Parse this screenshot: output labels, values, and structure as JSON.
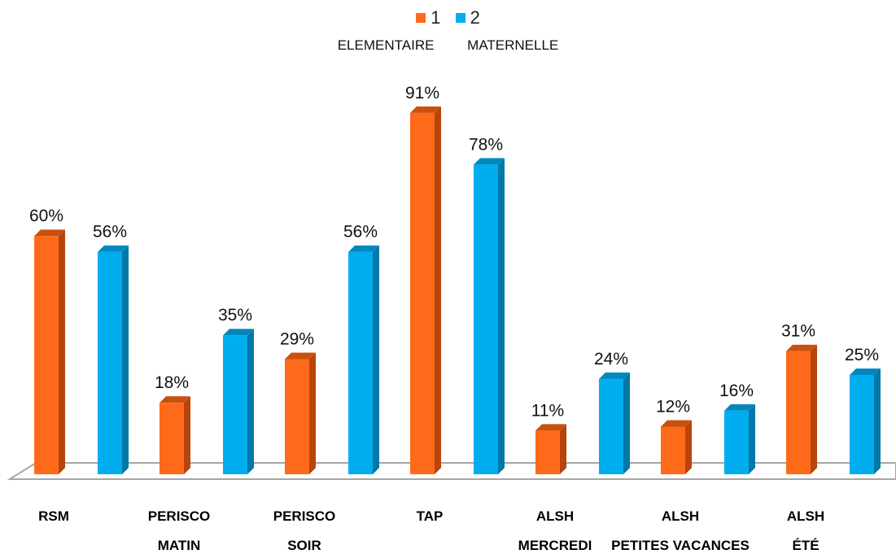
{
  "legend": {
    "items": [
      {
        "label": "1",
        "color": "#FF6A1A"
      },
      {
        "label": "2",
        "color": "#00AEEF"
      }
    ],
    "sublabels": [
      "ELEMENTAIRE",
      "MATERNELLE"
    ]
  },
  "chart_data": {
    "type": "bar",
    "categories": [
      [
        "RSM"
      ],
      [
        "PERISCO",
        "MATIN"
      ],
      [
        "PERISCO",
        "SOIR"
      ],
      [
        "TAP"
      ],
      [
        "ALSH",
        "MERCREDI"
      ],
      [
        "ALSH",
        "PETITES VACANCES"
      ],
      [
        "ALSH",
        "ÉTÉ"
      ]
    ],
    "series": [
      {
        "name": "1",
        "values": [
          60,
          18,
          29,
          91,
          11,
          12,
          31
        ],
        "color": "#FF6A1A",
        "side_color": "#B8440A",
        "top_color": "#C9500F"
      },
      {
        "name": "2",
        "values": [
          56,
          35,
          56,
          78,
          24,
          16,
          25
        ],
        "color": "#00AEEF",
        "side_color": "#0078A8",
        "top_color": "#0088BE"
      }
    ],
    "value_suffix": "%",
    "ylim": [
      0,
      100
    ],
    "grid": false,
    "legend_position": "top-center",
    "style": "3d-column"
  }
}
